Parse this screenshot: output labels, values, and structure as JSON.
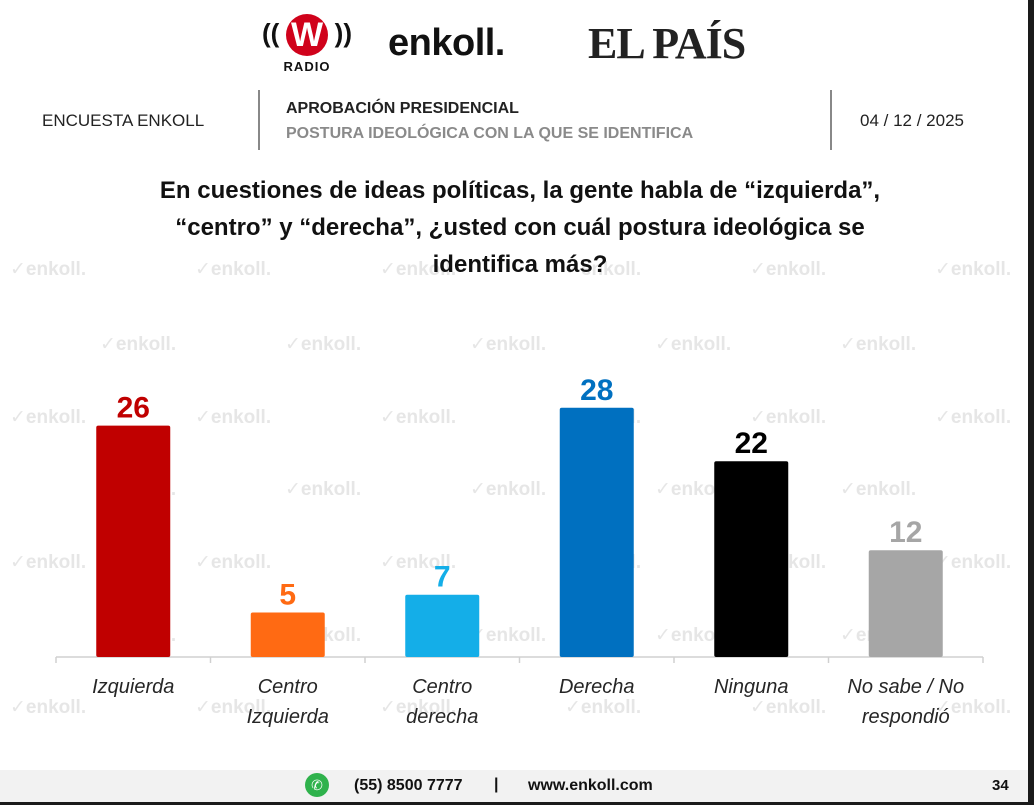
{
  "logos": {
    "w_letter": "W",
    "w_radio": "RADIO",
    "enkoll": "enkoll.",
    "pais": "EL PAÍS"
  },
  "header": {
    "left": "ENCUESTA ENKOLL",
    "title": "APROBACIÓN PRESIDENCIAL",
    "subtitle": "POSTURA IDEOLÓGICA CON LA QUE SE IDENTIFICA",
    "date": "04 / 12 / 2025"
  },
  "question": {
    "line1": "En cuestiones de ideas políticas, la gente habla de “izquierda”,",
    "line2": "“centro” y “derecha”, ¿usted con cuál postura ideológica se",
    "line3": "identifica más?"
  },
  "watermark_text": "enkoll.",
  "chart_data": {
    "type": "bar",
    "categories": [
      [
        "Izquierda"
      ],
      [
        "Centro",
        "Izquierda"
      ],
      [
        "Centro",
        "derecha"
      ],
      [
        "Derecha"
      ],
      [
        "Ninguna"
      ],
      [
        "No sabe / No",
        "respondió"
      ]
    ],
    "values": [
      26,
      5,
      7,
      28,
      22,
      12
    ],
    "colors": [
      "#c00000",
      "#ff6a13",
      "#14aee8",
      "#0070c0",
      "#000000",
      "#a6a6a6"
    ],
    "label_colors": [
      "#c00000",
      "#ff6a13",
      "#14aee8",
      "#0070c0",
      "#000000",
      "#a6a6a6"
    ],
    "ylim": [
      0,
      30
    ]
  },
  "footer": {
    "icon": "whatsapp-icon",
    "phone": "(55) 8500 7777",
    "separator": "|",
    "website": "www.enkoll.com",
    "page": "34"
  }
}
